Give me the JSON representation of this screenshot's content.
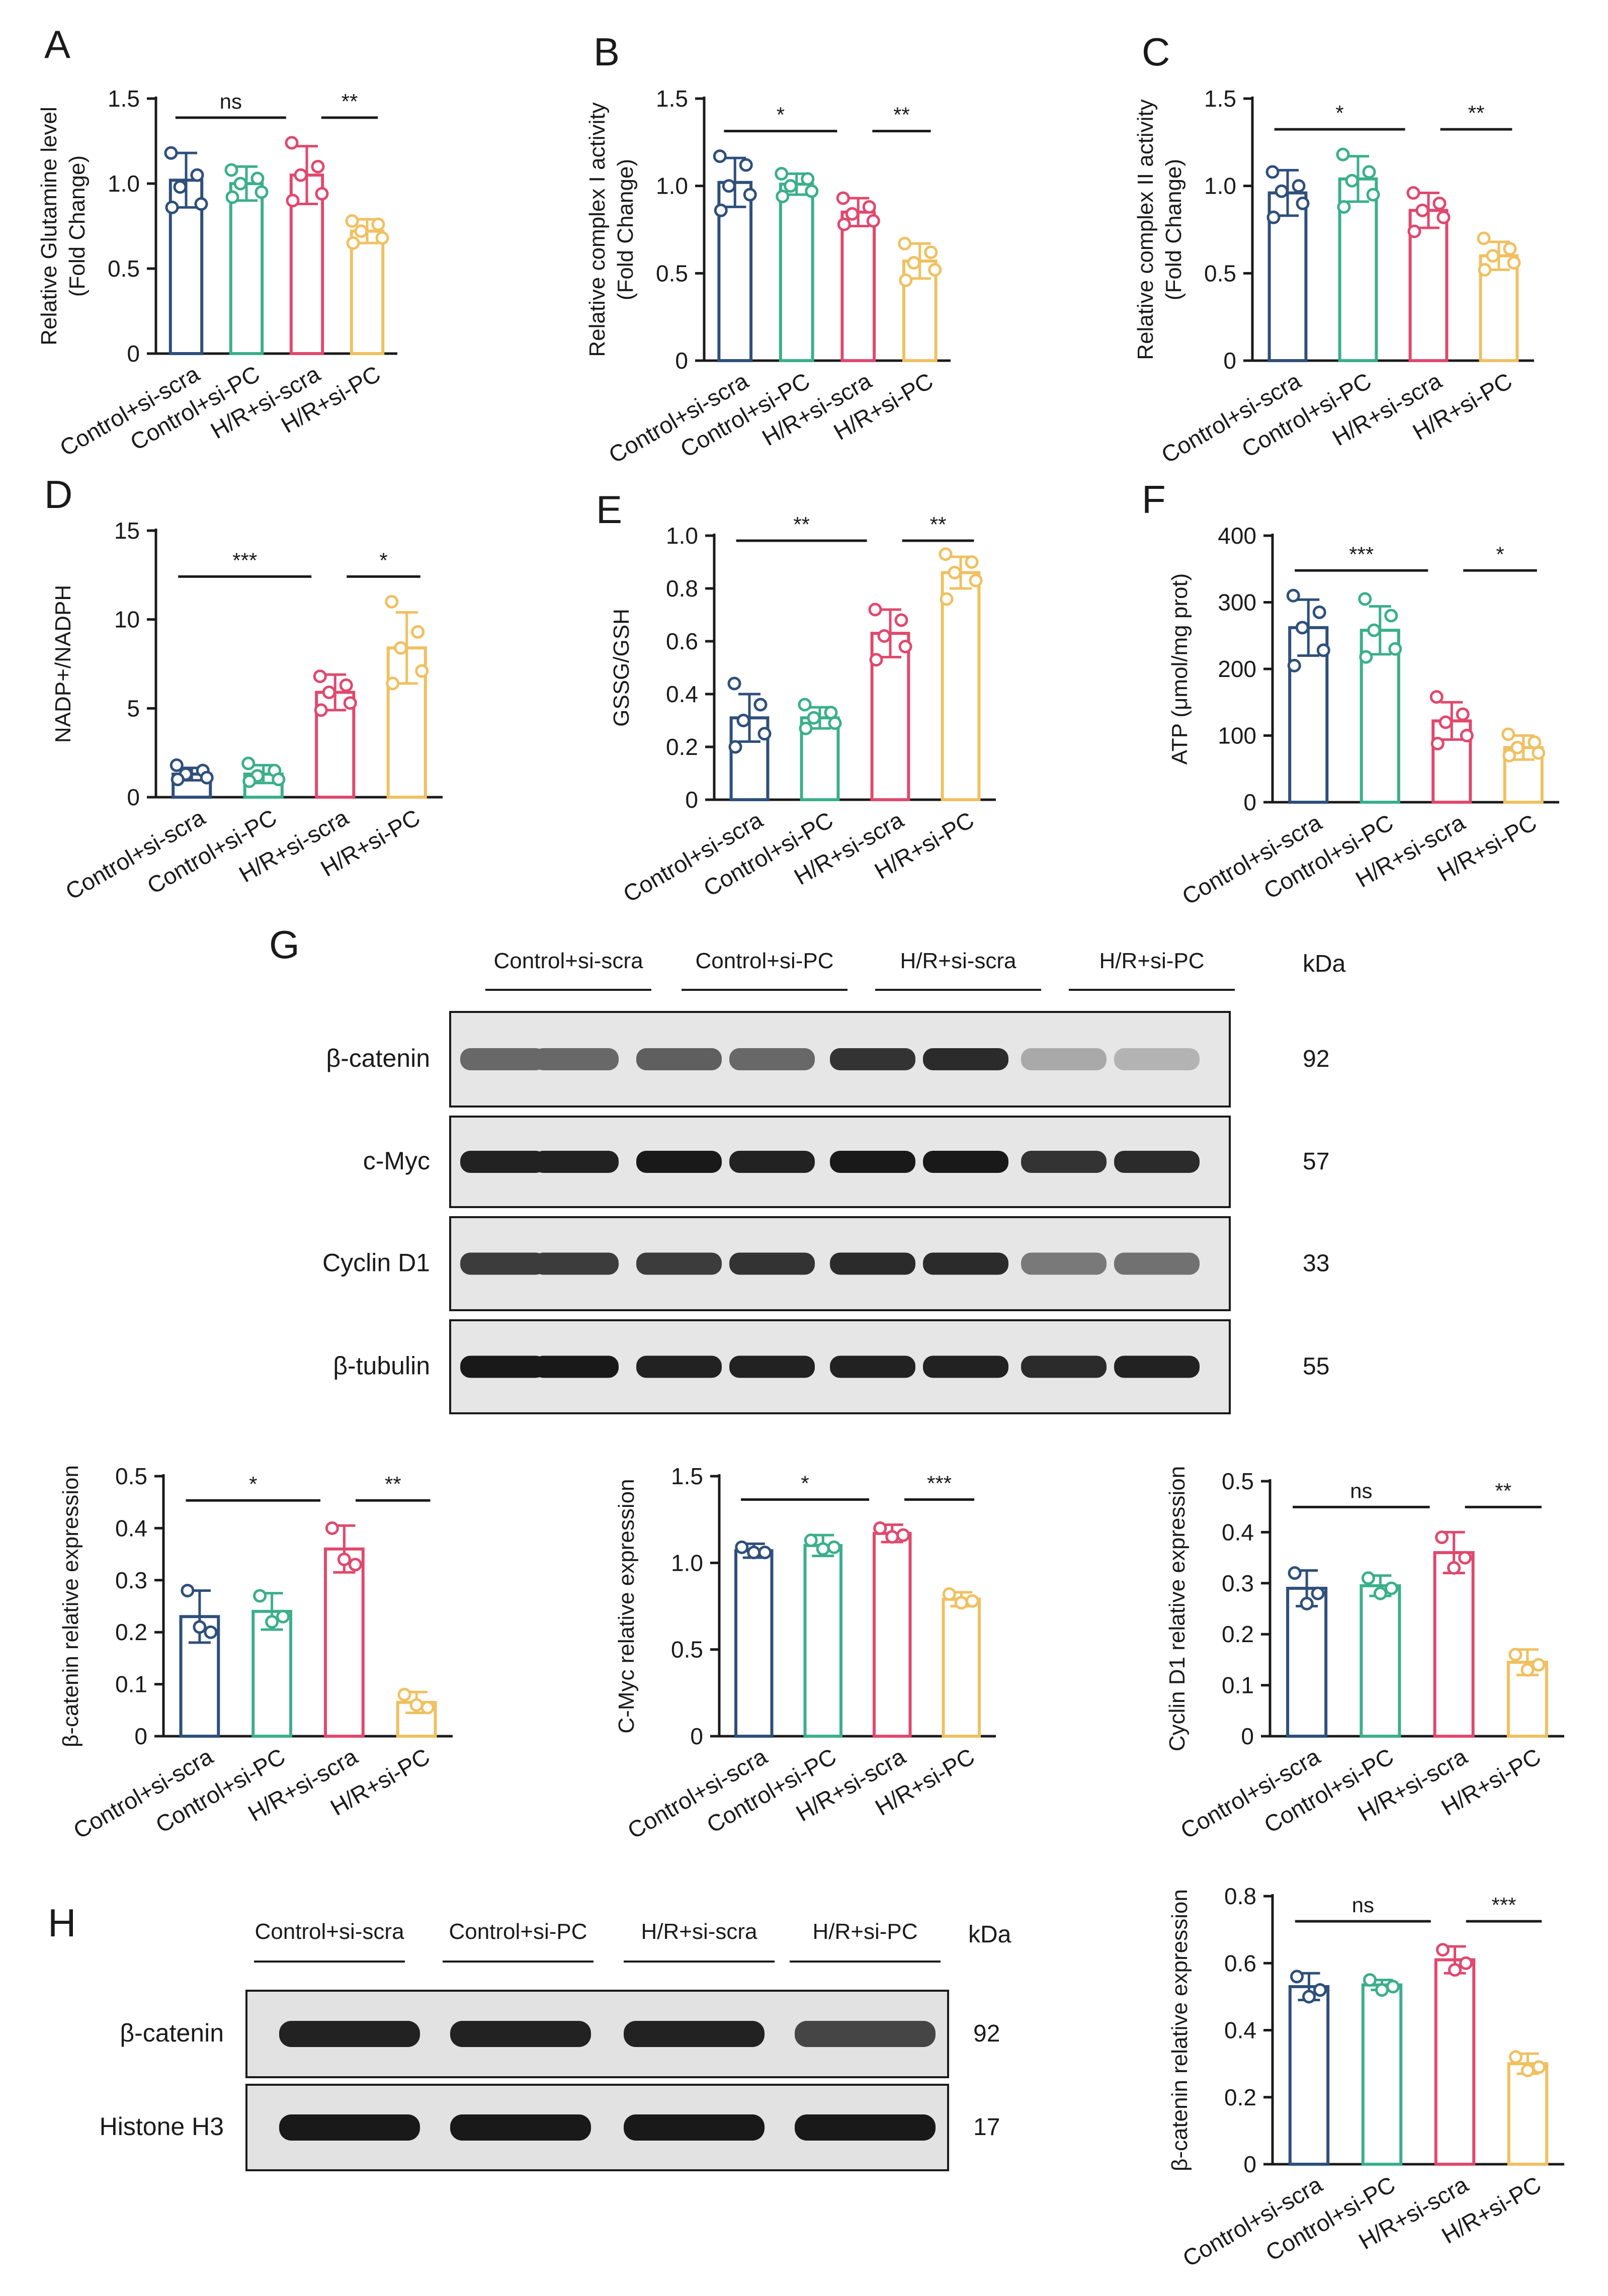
{
  "colors": {
    "control_si_scra": "#2e4f7a",
    "control_si_pc": "#3aaf8b",
    "hr_si_scra": "#e0486e",
    "hr_si_pc": "#f0c060",
    "ink": "#1a1a1a"
  },
  "categories": [
    "Control+si-scra",
    "Control+si-PC",
    "H/R+si-scra",
    "H/R+si-PC"
  ],
  "chart_data": [
    {
      "id": "A",
      "type": "bar",
      "letter": "A",
      "ylabel_lines": [
        "Relative Glutamine level",
        "(Fold Change)"
      ],
      "ylim": [
        0,
        1.5
      ],
      "ticks": [
        0,
        0.5,
        1.0,
        1.5
      ],
      "tick_labels": [
        "0",
        "0.5",
        "1.0",
        "1.5"
      ],
      "values": [
        1.02,
        1.0,
        1.05,
        0.72
      ],
      "errors": [
        0.16,
        0.1,
        0.17,
        0.07
      ],
      "points": [
        [
          1.18,
          1.05,
          0.98,
          0.88,
          0.86
        ],
        [
          1.08,
          1.03,
          1.0,
          0.95,
          0.92
        ],
        [
          1.24,
          1.1,
          1.05,
          0.94,
          0.9
        ],
        [
          0.78,
          0.76,
          0.72,
          0.68,
          0.65
        ]
      ],
      "brackets": [
        {
          "from": 0,
          "to": 2,
          "label": "ns"
        },
        {
          "from": 2,
          "to": 3,
          "label": "**"
        }
      ]
    },
    {
      "id": "B",
      "type": "bar",
      "letter": "B",
      "ylabel_lines": [
        "Relative complex I activity",
        "(Fold Change)"
      ],
      "ylim": [
        0,
        1.5
      ],
      "ticks": [
        0,
        0.5,
        1.0,
        1.5
      ],
      "tick_labels": [
        "0",
        "0.5",
        "1.0",
        "1.5"
      ],
      "values": [
        1.02,
        1.01,
        0.85,
        0.57
      ],
      "errors": [
        0.14,
        0.06,
        0.08,
        0.1
      ],
      "points": [
        [
          1.17,
          1.12,
          1.0,
          0.95,
          0.86
        ],
        [
          1.07,
          1.04,
          1.0,
          0.97,
          0.94
        ],
        [
          0.93,
          0.88,
          0.84,
          0.8,
          0.78
        ],
        [
          0.67,
          0.62,
          0.56,
          0.52,
          0.46
        ]
      ],
      "brackets": [
        {
          "from": 0,
          "to": 2,
          "label": "*"
        },
        {
          "from": 2,
          "to": 3,
          "label": "**"
        }
      ]
    },
    {
      "id": "C",
      "type": "bar",
      "letter": "C",
      "ylabel_lines": [
        "Relative complex II activity",
        "(Fold Change)"
      ],
      "ylim": [
        0,
        1.5
      ],
      "ticks": [
        0,
        0.5,
        1.0,
        1.5
      ],
      "tick_labels": [
        "0",
        "0.5",
        "1.0",
        "1.5"
      ],
      "values": [
        0.96,
        1.04,
        0.86,
        0.6
      ],
      "errors": [
        0.13,
        0.13,
        0.1,
        0.08
      ],
      "points": [
        [
          1.08,
          1.0,
          0.97,
          0.9,
          0.82
        ],
        [
          1.18,
          1.08,
          1.03,
          0.95,
          0.88
        ],
        [
          0.96,
          0.9,
          0.86,
          0.82,
          0.74
        ],
        [
          0.7,
          0.64,
          0.6,
          0.56,
          0.52
        ]
      ],
      "brackets": [
        {
          "from": 0,
          "to": 2,
          "label": "*"
        },
        {
          "from": 2,
          "to": 3,
          "label": "**"
        }
      ]
    },
    {
      "id": "D",
      "type": "bar",
      "letter": "D",
      "ylabel_lines": [
        "NADP+/NADPH"
      ],
      "ylim": [
        0,
        15
      ],
      "ticks": [
        0,
        5,
        10,
        15
      ],
      "tick_labels": [
        "0",
        "5",
        "10",
        "15"
      ],
      "values": [
        1.3,
        1.3,
        5.9,
        8.4
      ],
      "errors": [
        0.35,
        0.5,
        1.0,
        2.0
      ],
      "points": [
        [
          1.8,
          1.5,
          1.3,
          1.1,
          1.0
        ],
        [
          1.9,
          1.5,
          1.2,
          1.0,
          0.9
        ],
        [
          6.8,
          6.3,
          5.9,
          5.3,
          4.9
        ],
        [
          11.0,
          9.3,
          8.4,
          7.1,
          6.4
        ]
      ],
      "brackets": [
        {
          "from": 0,
          "to": 2,
          "label": "***"
        },
        {
          "from": 2,
          "to": 3,
          "label": "*"
        }
      ]
    },
    {
      "id": "E",
      "type": "bar",
      "letter": "E",
      "ylabel_lines": [
        "GSSG/GSH"
      ],
      "ylim": [
        0,
        1.0
      ],
      "ticks": [
        0,
        0.2,
        0.4,
        0.6,
        0.8,
        1.0
      ],
      "tick_labels": [
        "0",
        "0.2",
        "0.4",
        "0.6",
        "0.8",
        "1.0"
      ],
      "values": [
        0.31,
        0.31,
        0.63,
        0.86
      ],
      "errors": [
        0.09,
        0.04,
        0.09,
        0.06
      ],
      "points": [
        [
          0.44,
          0.36,
          0.3,
          0.25,
          0.2
        ],
        [
          0.36,
          0.33,
          0.31,
          0.29,
          0.27
        ],
        [
          0.72,
          0.68,
          0.62,
          0.58,
          0.53
        ],
        [
          0.93,
          0.9,
          0.86,
          0.83,
          0.76
        ]
      ],
      "brackets": [
        {
          "from": 0,
          "to": 2,
          "label": "**"
        },
        {
          "from": 2,
          "to": 3,
          "label": "**"
        }
      ]
    },
    {
      "id": "F",
      "type": "bar",
      "letter": "F",
      "ylabel_lines": [
        "ATP (μmol/mg prot)"
      ],
      "ylim": [
        0,
        400
      ],
      "ticks": [
        0,
        100,
        200,
        300,
        400
      ],
      "tick_labels": [
        "0",
        "100",
        "200",
        "300",
        "400"
      ],
      "values": [
        262,
        258,
        122,
        82
      ],
      "errors": [
        42,
        36,
        28,
        18
      ],
      "points": [
        [
          310,
          285,
          262,
          228,
          205
        ],
        [
          305,
          280,
          258,
          230,
          218
        ],
        [
          158,
          132,
          120,
          100,
          88
        ],
        [
          102,
          90,
          82,
          74,
          70
        ]
      ],
      "brackets": [
        {
          "from": 0,
          "to": 2,
          "label": "***"
        },
        {
          "from": 2,
          "to": 3,
          "label": "*"
        }
      ]
    },
    {
      "id": "G1",
      "type": "bar",
      "letter": "",
      "ylabel_lines": [
        "β-catenin relative expression"
      ],
      "ylim": [
        0,
        0.5
      ],
      "ticks": [
        0,
        0.1,
        0.2,
        0.3,
        0.4,
        0.5
      ],
      "tick_labels": [
        "0",
        "0.1",
        "0.2",
        "0.3",
        "0.4",
        "0.5"
      ],
      "values": [
        0.23,
        0.24,
        0.36,
        0.065
      ],
      "errors": [
        0.05,
        0.035,
        0.045,
        0.02
      ],
      "points": [
        [
          0.28,
          0.2,
          0.21
        ],
        [
          0.27,
          0.23,
          0.22
        ],
        [
          0.4,
          0.33,
          0.34
        ],
        [
          0.08,
          0.055,
          0.06
        ]
      ],
      "brackets": [
        {
          "from": 0,
          "to": 2,
          "label": "*"
        },
        {
          "from": 2,
          "to": 3,
          "label": "**"
        }
      ]
    },
    {
      "id": "G2",
      "type": "bar",
      "letter": "",
      "ylabel_lines": [
        "C-Myc relative expression"
      ],
      "ylim": [
        0,
        1.5
      ],
      "ticks": [
        0,
        0.5,
        1.0,
        1.5
      ],
      "tick_labels": [
        "0",
        "0.5",
        "1.0",
        "1.5"
      ],
      "values": [
        1.07,
        1.1,
        1.17,
        0.79
      ],
      "errors": [
        0.04,
        0.06,
        0.05,
        0.04
      ],
      "points": [
        [
          1.09,
          1.06,
          1.06
        ],
        [
          1.13,
          1.09,
          1.08
        ],
        [
          1.2,
          1.16,
          1.15
        ],
        [
          0.82,
          0.78,
          0.77
        ]
      ],
      "brackets": [
        {
          "from": 0,
          "to": 2,
          "label": "*"
        },
        {
          "from": 2,
          "to": 3,
          "label": "***"
        }
      ]
    },
    {
      "id": "G3",
      "type": "bar",
      "letter": "",
      "ylabel_lines": [
        "Cyclin D1 relative expression"
      ],
      "ylim": [
        0,
        0.5
      ],
      "ticks": [
        0,
        0.1,
        0.2,
        0.3,
        0.4,
        0.5
      ],
      "tick_labels": [
        "0",
        "0.1",
        "0.2",
        "0.3",
        "0.4",
        "0.5"
      ],
      "values": [
        0.29,
        0.295,
        0.36,
        0.145
      ],
      "errors": [
        0.035,
        0.02,
        0.04,
        0.025
      ],
      "points": [
        [
          0.32,
          0.28,
          0.26
        ],
        [
          0.31,
          0.29,
          0.28
        ],
        [
          0.39,
          0.35,
          0.33
        ],
        [
          0.16,
          0.14,
          0.13
        ]
      ],
      "brackets": [
        {
          "from": 0,
          "to": 2,
          "label": "ns"
        },
        {
          "from": 2,
          "to": 3,
          "label": "**"
        }
      ]
    },
    {
      "id": "H1",
      "type": "bar",
      "letter": "",
      "ylabel_lines": [
        "β-catenin relative expression"
      ],
      "ylim": [
        0,
        0.8
      ],
      "ticks": [
        0,
        0.2,
        0.4,
        0.6,
        0.8
      ],
      "tick_labels": [
        "0",
        "0.2",
        "0.4",
        "0.6",
        "0.8"
      ],
      "values": [
        0.53,
        0.535,
        0.61,
        0.3
      ],
      "errors": [
        0.04,
        0.015,
        0.04,
        0.03
      ],
      "points": [
        [
          0.56,
          0.52,
          0.5
        ],
        [
          0.55,
          0.53,
          0.52
        ],
        [
          0.64,
          0.6,
          0.58
        ],
        [
          0.32,
          0.29,
          0.28
        ]
      ],
      "brackets": [
        {
          "from": 0,
          "to": 2,
          "label": "ns"
        },
        {
          "from": 2,
          "to": 3,
          "label": "***"
        }
      ]
    }
  ],
  "blot_g": {
    "letter": "G",
    "lane_groups": [
      "Control+si-scra",
      "Control+si-PC",
      "H/R+si-scra",
      "H/R+si-PC"
    ],
    "kda_header": "kDa",
    "rows": [
      {
        "name": "β-catenin",
        "kda": "92",
        "intensities": [
          0.55,
          0.55,
          0.6,
          0.55,
          0.85,
          0.9,
          0.18,
          0.12
        ]
      },
      {
        "name": "c-Myc",
        "kda": "57",
        "intensities": [
          0.95,
          0.95,
          1.0,
          0.95,
          1.0,
          1.0,
          0.85,
          0.9
        ]
      },
      {
        "name": "Cyclin D1",
        "kda": "33",
        "intensities": [
          0.8,
          0.8,
          0.8,
          0.85,
          0.9,
          0.9,
          0.45,
          0.5
        ]
      },
      {
        "name": "β-tubulin",
        "kda": "55",
        "intensities": [
          1.0,
          1.0,
          0.95,
          0.95,
          0.95,
          0.95,
          0.9,
          0.95
        ]
      }
    ]
  },
  "blot_h": {
    "letter": "H",
    "lane_groups": [
      "Control+si-scra",
      "Control+si-PC",
      "H/R+si-scra",
      "H/R+si-PC"
    ],
    "kda_header": "kDa",
    "rows": [
      {
        "name": "β-catenin",
        "kda": "92",
        "intensities": [
          0.95,
          0.95,
          0.95,
          0.75
        ]
      },
      {
        "name": "Histone H3",
        "kda": "17",
        "intensities": [
          1.0,
          1.0,
          1.0,
          1.0
        ]
      }
    ]
  }
}
